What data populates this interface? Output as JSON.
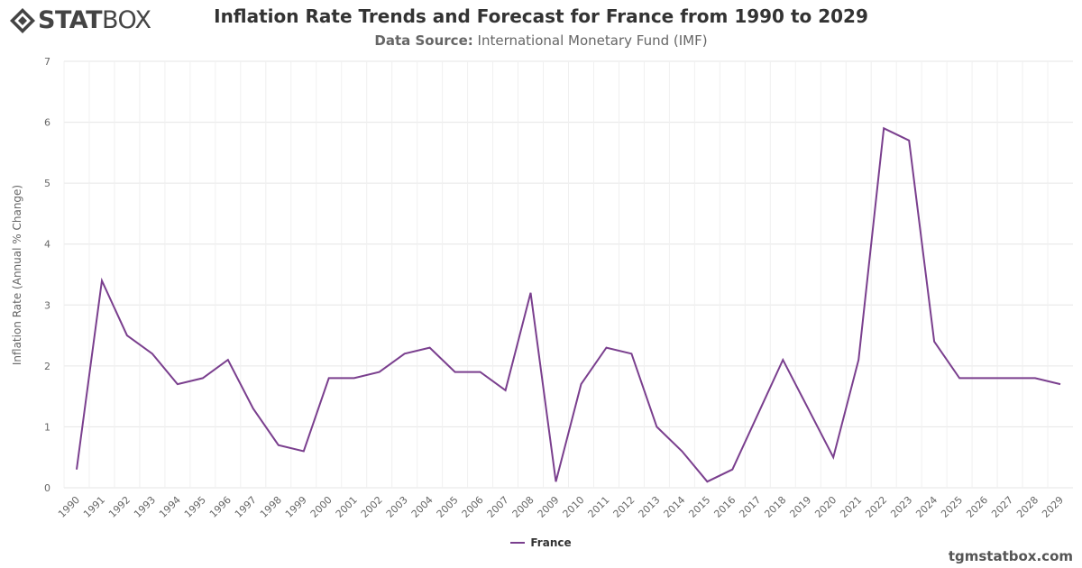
{
  "logo": {
    "text_bold": "STAT",
    "text_light": "BOX"
  },
  "header": {
    "title": "Inflation Rate Trends and Forecast for France from 1990 to 2029",
    "subtitle_label": "Data Source:",
    "subtitle_value": "International Monetary Fund (IMF)"
  },
  "credit": "tgmstatbox.com",
  "colors": {
    "series": "#7a3f8e",
    "grid": "#e6e6e6",
    "axis_text": "#666666"
  },
  "chart_data": {
    "type": "line",
    "title": "Inflation Rate Trends and Forecast for France from 1990 to 2029",
    "subtitle": "Data Source: International Monetary Fund (IMF)",
    "xlabel": "",
    "ylabel": "Inflation Rate (Annual % Change)",
    "ylim": [
      0,
      7
    ],
    "yticks": [
      0,
      1,
      2,
      3,
      4,
      5,
      6,
      7
    ],
    "grid": true,
    "legend_position": "bottom-center",
    "categories": [
      "1990",
      "1991",
      "1992",
      "1993",
      "1994",
      "1995",
      "1996",
      "1997",
      "1998",
      "1999",
      "2000",
      "2001",
      "2002",
      "2003",
      "2004",
      "2005",
      "2006",
      "2007",
      "2008",
      "2009",
      "2010",
      "2011",
      "2012",
      "2013",
      "2014",
      "2015",
      "2016",
      "2017",
      "2018",
      "2019",
      "2020",
      "2021",
      "2022",
      "2023",
      "2024",
      "2025",
      "2026",
      "2027",
      "2028",
      "2029"
    ],
    "series": [
      {
        "name": "France",
        "values": [
          0.3,
          3.4,
          2.5,
          2.2,
          1.7,
          1.8,
          2.1,
          1.3,
          0.7,
          0.6,
          1.8,
          1.8,
          1.9,
          2.2,
          2.3,
          1.9,
          1.9,
          1.6,
          3.2,
          0.1,
          1.7,
          2.3,
          2.2,
          1.0,
          0.6,
          0.1,
          0.3,
          1.2,
          2.1,
          1.3,
          0.5,
          2.1,
          5.9,
          5.7,
          2.4,
          1.8,
          1.8,
          1.8,
          1.8,
          1.7
        ]
      }
    ]
  }
}
